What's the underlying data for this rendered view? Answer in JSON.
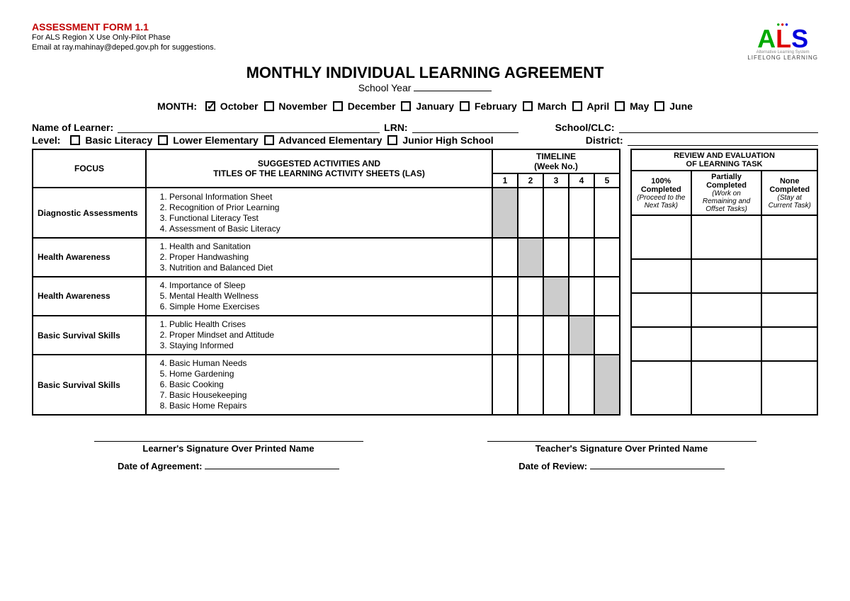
{
  "header": {
    "form_label": "ASSESSMENT FORM 1.1",
    "sub1": "For ALS Region X Use Only-Pilot Phase",
    "sub2": "Email at ray.mahinay@deped.gov.ph for suggestions.",
    "logo_text": "ALS",
    "logo_tag1": "Alternative Learning System",
    "logo_tag2": "LIFELONG LEARNING"
  },
  "title": "MONTHLY INDIVIDUAL LEARNING AGREEMENT",
  "subtitle_prefix": "School Year",
  "months_label": "MONTH:",
  "months": [
    {
      "label": "October",
      "checked": true
    },
    {
      "label": "November",
      "checked": false
    },
    {
      "label": "December",
      "checked": false
    },
    {
      "label": "January",
      "checked": false
    },
    {
      "label": "February",
      "checked": false
    },
    {
      "label": "March",
      "checked": false
    },
    {
      "label": "April",
      "checked": false
    },
    {
      "label": "May",
      "checked": false
    },
    {
      "label": "June",
      "checked": false
    }
  ],
  "info": {
    "name_label": "Name of Learner:",
    "lrn_label": "LRN:",
    "school_label": "School/CLC:",
    "level_label": "Level:",
    "district_label": "District:",
    "levels": [
      "Basic Literacy",
      "Lower Elementary",
      "Advanced Elementary",
      "Junior High School"
    ]
  },
  "table": {
    "headers": {
      "focus": "FOCUS",
      "activities": "SUGGESTED ACTIVITIES AND\nTITLES OF THE LEARNING ACTIVITY SHEETS (LAS)",
      "timeline": "TIMELINE",
      "timeline_sub": "(Week No.)",
      "weeks": [
        "1",
        "2",
        "3",
        "4",
        "5"
      ]
    },
    "rows": [
      {
        "focus": "Diagnostic Assessments",
        "start": 1,
        "shaded": 1,
        "items": [
          "Personal Information Sheet",
          "Recognition of Prior Learning",
          "Functional Literacy Test",
          "Assessment of Basic Literacy"
        ]
      },
      {
        "focus": "Health Awareness",
        "start": 1,
        "shaded": 2,
        "items": [
          "Health and Sanitation",
          "Proper Handwashing",
          "Nutrition and Balanced Diet"
        ]
      },
      {
        "focus": "Health Awareness",
        "start": 4,
        "shaded": 3,
        "items": [
          "Importance of Sleep",
          "Mental Health Wellness",
          "Simple Home Exercises"
        ]
      },
      {
        "focus": "Basic Survival Skills",
        "start": 1,
        "shaded": 4,
        "items": [
          "Public Health Crises",
          "Proper Mindset and Attitude",
          "Staying Informed"
        ]
      },
      {
        "focus": "Basic Survival Skills",
        "start": 4,
        "shaded": 5,
        "items": [
          "Basic Human Needs",
          "Home Gardening",
          "Basic Cooking",
          "Basic Housekeeping",
          "Basic Home Repairs"
        ]
      }
    ]
  },
  "review": {
    "title": "REVIEW AND EVALUATION",
    "title2": "OF LEARNING TASK",
    "cols": [
      {
        "h": "100% Completed",
        "s": "(Proceed to the Next Task)"
      },
      {
        "h": "Partially Completed",
        "s": "(Work on Remaining and Offset Tasks)"
      },
      {
        "h": "None Completed",
        "s": "(Stay at Current Task)"
      }
    ]
  },
  "sigs": {
    "learner": "Learner's Signature Over Printed Name",
    "teacher": "Teacher's Signature Over Printed Name",
    "date_agree": "Date of Agreement:",
    "date_review": "Date of Review:"
  }
}
